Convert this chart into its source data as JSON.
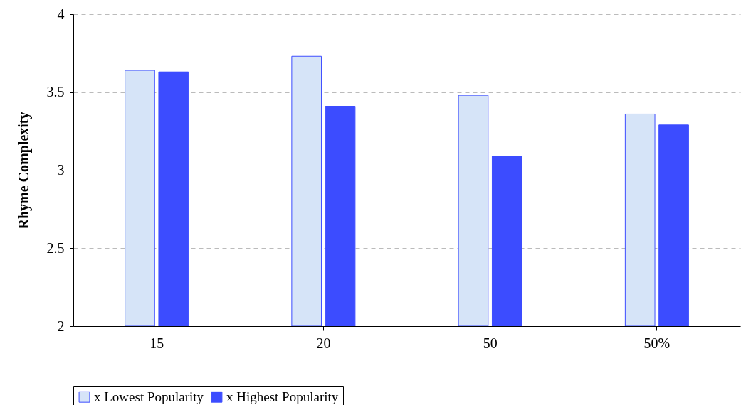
{
  "chart_data": {
    "type": "bar",
    "ylabel": "Rhyme Complexity",
    "categories": [
      "15",
      "20",
      "50",
      "50%"
    ],
    "series": [
      {
        "name": "x Lowest Popularity",
        "color": "#d6e4f8",
        "values": [
          3.64,
          3.73,
          3.48,
          3.36
        ]
      },
      {
        "name": "x Highest Popularity",
        "color": "#3c4cff",
        "values": [
          3.63,
          3.41,
          3.09,
          3.29
        ]
      }
    ],
    "ylim": [
      2,
      4
    ],
    "yticks": [
      2,
      2.5,
      3,
      3.5,
      4
    ],
    "grid": "y",
    "legend": "bottom"
  }
}
